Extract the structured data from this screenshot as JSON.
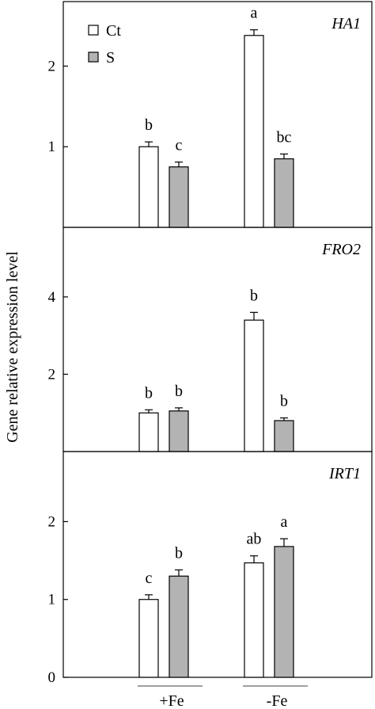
{
  "chart_data": {
    "type": "bar",
    "ylabel": "Gene relative expression level",
    "categories": [
      "+Fe",
      "-Fe"
    ],
    "legend": {
      "placement": "top-left",
      "entries": [
        {
          "label": "Ct",
          "color": "#ffffff"
        },
        {
          "label": "S",
          "color": "#b3b3b3"
        }
      ]
    },
    "panels": [
      {
        "gene": "HA1",
        "ylim": [
          0,
          2.8
        ],
        "yticks": [
          1,
          2
        ],
        "series": [
          {
            "name": "Ct",
            "values": [
              1.0,
              2.38
            ],
            "errors": [
              0.06,
              0.07
            ],
            "letters": [
              "b",
              "a"
            ]
          },
          {
            "name": "S",
            "values": [
              0.75,
              0.85
            ],
            "errors": [
              0.06,
              0.06
            ],
            "letters": [
              "c",
              "bc"
            ]
          }
        ]
      },
      {
        "gene": "FRO2",
        "ylim": [
          0,
          5.8
        ],
        "yticks": [
          2,
          4
        ],
        "series": [
          {
            "name": "Ct",
            "values": [
              1.0,
              3.4
            ],
            "errors": [
              0.08,
              0.2
            ],
            "letters": [
              "b",
              "b"
            ]
          },
          {
            "name": "S",
            "values": [
              1.05,
              0.8
            ],
            "errors": [
              0.08,
              0.07
            ],
            "letters": [
              "b",
              "b"
            ]
          }
        ]
      },
      {
        "gene": "IRT1",
        "ylim": [
          0,
          2.9
        ],
        "yticks": [
          0,
          1,
          2
        ],
        "series": [
          {
            "name": "Ct",
            "values": [
              1.0,
              1.47
            ],
            "errors": [
              0.06,
              0.09
            ],
            "letters": [
              "c",
              "ab"
            ]
          },
          {
            "name": "S",
            "values": [
              1.3,
              1.68
            ],
            "errors": [
              0.08,
              0.1
            ],
            "letters": [
              "b",
              "a"
            ]
          }
        ]
      }
    ],
    "colors": {
      "ct": "#ffffff",
      "s": "#b3b3b3",
      "stroke": "#000000"
    }
  }
}
